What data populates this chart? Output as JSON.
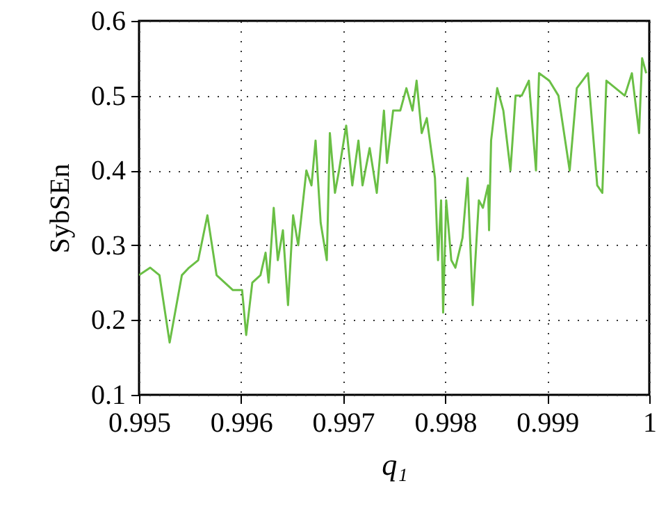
{
  "chart_data": {
    "type": "line",
    "xlabel": "q₁",
    "ylabel": "SybSEn",
    "xlim": [
      0.995,
      1
    ],
    "ylim": [
      0.1,
      0.6
    ],
    "xticks": [
      0.995,
      0.996,
      0.997,
      0.998,
      0.999,
      1
    ],
    "yticks": [
      0.1,
      0.2,
      0.3,
      0.4,
      0.5,
      0.6
    ],
    "grid": true,
    "series": [
      {
        "color": "#6abf45",
        "x": [
          0.995,
          0.99511,
          0.9952,
          0.9953,
          0.99542,
          0.99549,
          0.99558,
          0.99567,
          0.99576,
          0.99592,
          0.99601,
          0.99605,
          0.99611,
          0.99619,
          0.99624,
          0.99627,
          0.99632,
          0.99636,
          0.99641,
          0.99646,
          0.99651,
          0.99656,
          0.99664,
          0.99669,
          0.99673,
          0.99678,
          0.99684,
          0.99687,
          0.99692,
          0.99696,
          0.99703,
          0.99709,
          0.99715,
          0.99719,
          0.99726,
          0.99733,
          0.9974,
          0.99743,
          0.99749,
          0.99756,
          0.99762,
          0.99768,
          0.99772,
          0.99777,
          0.99782,
          0.99787,
          0.9979,
          0.99793,
          0.99796,
          0.99798,
          0.99801,
          0.99806,
          0.9981,
          0.99817,
          0.99822,
          0.99827,
          0.99833,
          0.99837,
          0.99842,
          0.99843,
          0.99845,
          0.99851,
          0.99857,
          0.99864,
          0.99869,
          0.99875,
          0.99882,
          0.99889,
          0.99892,
          0.99902,
          0.99911,
          0.99922,
          0.99929,
          0.9994,
          0.99949,
          0.99954,
          0.99958,
          0.99967,
          0.99976,
          0.99983,
          0.9999,
          0.99993,
          0.99997
        ],
        "values": [
          0.26,
          0.27,
          0.26,
          0.17,
          0.26,
          0.27,
          0.28,
          0.34,
          0.26,
          0.24,
          0.24,
          0.18,
          0.25,
          0.26,
          0.29,
          0.25,
          0.35,
          0.28,
          0.32,
          0.22,
          0.34,
          0.3,
          0.4,
          0.38,
          0.44,
          0.33,
          0.28,
          0.45,
          0.37,
          0.4,
          0.46,
          0.38,
          0.44,
          0.38,
          0.43,
          0.37,
          0.48,
          0.41,
          0.48,
          0.48,
          0.51,
          0.48,
          0.52,
          0.45,
          0.47,
          0.42,
          0.39,
          0.28,
          0.36,
          0.21,
          0.36,
          0.28,
          0.27,
          0.31,
          0.39,
          0.22,
          0.36,
          0.35,
          0.38,
          0.32,
          0.44,
          0.51,
          0.48,
          0.4,
          0.5,
          0.5,
          0.52,
          0.4,
          0.53,
          0.52,
          0.5,
          0.4,
          0.51,
          0.53,
          0.38,
          0.37,
          0.52,
          0.51,
          0.5,
          0.53,
          0.45,
          0.55,
          0.53
        ]
      }
    ]
  }
}
